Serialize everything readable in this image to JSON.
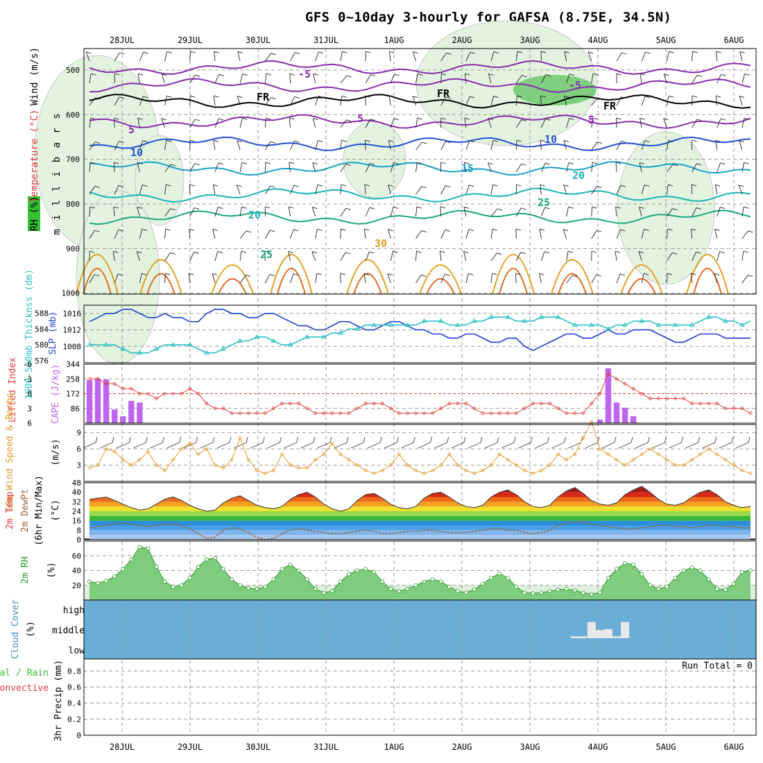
{
  "title": "GFS 0~10day 3-hourly for GAFSA (8.75E, 34.5N)",
  "dates": [
    "28JUL",
    "29JUL",
    "30JUL",
    "31JUL",
    "1AUG",
    "2AUG",
    "3AUG",
    "4AUG",
    "5AUG",
    "6AUG"
  ],
  "colors": {
    "grid": "#9a9a9a",
    "slp": "#1f3fd0",
    "thickness": "#2bbfc4",
    "lifted_index": "#e03c3c",
    "cape": "#bf66f0",
    "wind10m": "#e29a2a",
    "barb": "#4a3a3a",
    "dewpoint": "#a06030",
    "rh": "#2a9a2a",
    "cloud": "#6aaed6",
    "cloud_bars": "#e8e8e8"
  },
  "chart_data": [
    {
      "type": "area",
      "name": "upper-air",
      "ylabel": "m i l l i b a r s",
      "yticks": [
        500,
        600,
        700,
        800,
        900,
        1000
      ],
      "side_labels": [
        "Wind (m/s)",
        "Temperature (°C)",
        "RH (%)"
      ],
      "isotherm_labels": [
        "-5",
        "FR",
        "5",
        "10",
        "15",
        "20",
        "25",
        "30"
      ],
      "isotherms": [
        {
          "label": "-5",
          "color": "#8a2bb0",
          "pressure": 495
        },
        {
          "label": "-5",
          "color": "#8a2bb0",
          "pressure": 535
        },
        {
          "label": "FR",
          "color": "#000000",
          "pressure": 570
        },
        {
          "label": "5",
          "color": "#8a2bb0",
          "pressure": 615
        },
        {
          "label": "10",
          "color": "#2050d0",
          "pressure": 665
        },
        {
          "label": "15",
          "color": "#1aa0c8",
          "pressure": 720
        },
        {
          "label": "20",
          "color": "#1ab4b4",
          "pressure": 780
        },
        {
          "label": "25",
          "color": "#1aa87a",
          "pressure": 830
        }
      ]
    },
    {
      "type": "line",
      "name": "slp-thickness",
      "left_label": "1000-500mb Thicknss (dm)",
      "right_label": "SLP (mb)",
      "left_ticks": [
        "576",
        "580",
        "584",
        "588"
      ],
      "right_ticks": [
        "1008",
        "1012",
        "1016"
      ],
      "series": [
        {
          "name": "SLP (mb)",
          "axis": "right",
          "ylim": [
            1004,
            1018
          ],
          "values": [
            1014,
            1015,
            1016,
            1016,
            1017,
            1017,
            1016,
            1015,
            1015,
            1016,
            1015,
            1015,
            1014,
            1014,
            1016,
            1017,
            1017,
            1016,
            1016,
            1015,
            1015,
            1016,
            1016,
            1015,
            1014,
            1013,
            1013,
            1012,
            1012,
            1013,
            1014,
            1014,
            1013,
            1012,
            1012,
            1013,
            1014,
            1014,
            1013,
            1012,
            1012,
            1011,
            1011,
            1010,
            1010,
            1011,
            1011,
            1010,
            1009,
            1009,
            1010,
            1010,
            1008,
            1007,
            1008,
            1009,
            1010,
            1011,
            1011,
            1010,
            1010,
            1011,
            1012,
            1011,
            1011,
            1012,
            1012,
            1012,
            1011,
            1010,
            1009,
            1009,
            1010,
            1011,
            1011,
            1011,
            1010,
            1010,
            1010,
            1010
          ]
        },
        {
          "name": "Thickness (dm)",
          "axis": "left",
          "ylim": [
            575.5,
            590
          ],
          "values": [
            580,
            580,
            580,
            580,
            579,
            578,
            578,
            578,
            579,
            580,
            580,
            580,
            580,
            579,
            578,
            578,
            579,
            580,
            581,
            581,
            582,
            582,
            581,
            580,
            580,
            581,
            582,
            582,
            582,
            583,
            583,
            584,
            584,
            585,
            585,
            585,
            585,
            585,
            585,
            585,
            586,
            586,
            586,
            585,
            585,
            585,
            586,
            586,
            587,
            587,
            587,
            586,
            586,
            586,
            587,
            587,
            587,
            586,
            585,
            585,
            585,
            585,
            584,
            585,
            585,
            586,
            586,
            586,
            585,
            585,
            585,
            585,
            585,
            586,
            587,
            587,
            586,
            586,
            585,
            586
          ]
        }
      ]
    },
    {
      "type": "bar",
      "name": "lifted-index-cape",
      "left_label": "Lifted Index",
      "right_label": "CAPE (J/kg)",
      "li_ticks": [
        "-6",
        "-3",
        "0",
        "3",
        "6"
      ],
      "cape_ticks": [
        "344",
        "258",
        "172",
        "86"
      ],
      "li_ylim": [
        6,
        -6
      ],
      "cape_ylim": [
        0,
        344
      ],
      "li": [
        -3,
        -3,
        -2,
        -2,
        -1,
        -1,
        0,
        0,
        1,
        0,
        0,
        0,
        -1,
        0,
        2,
        3,
        3,
        4,
        4,
        4,
        4,
        4,
        3,
        2,
        2,
        2,
        3,
        4,
        4,
        4,
        4,
        4,
        3,
        2,
        2,
        2,
        3,
        4,
        4,
        4,
        4,
        4,
        3,
        2,
        2,
        2,
        3,
        4,
        4,
        4,
        4,
        4,
        3,
        2,
        2,
        2,
        3,
        4,
        4,
        4,
        2,
        0,
        -4,
        -3,
        -2,
        -1,
        0,
        1,
        1,
        1,
        1,
        1,
        2,
        2,
        2,
        2,
        3,
        3,
        3,
        4
      ],
      "cape": [
        250,
        260,
        255,
        80,
        40,
        130,
        120,
        0,
        0,
        0,
        0,
        0,
        0,
        0,
        0,
        0,
        0,
        0,
        0,
        0,
        0,
        0,
        0,
        0,
        0,
        0,
        0,
        0,
        0,
        0,
        0,
        0,
        0,
        0,
        0,
        0,
        0,
        0,
        0,
        0,
        0,
        0,
        0,
        0,
        0,
        0,
        0,
        0,
        0,
        0,
        0,
        0,
        0,
        0,
        0,
        0,
        0,
        0,
        0,
        0,
        0,
        20,
        320,
        120,
        90,
        40,
        0,
        0,
        0,
        0,
        0,
        0,
        0,
        0,
        0,
        0,
        0,
        0,
        0,
        0
      ]
    },
    {
      "type": "line",
      "name": "wind-10m",
      "left_label": "10m Wind Speed & Barbs",
      "unit": "(m/s)",
      "yticks": [
        "3",
        "6",
        "9"
      ],
      "ylim": [
        0,
        10.5
      ],
      "values": [
        2.5,
        3,
        6,
        5.5,
        4,
        3,
        4,
        5.5,
        3,
        2,
        4,
        6,
        7,
        5,
        6,
        3,
        2.5,
        4,
        8,
        4,
        2,
        1.5,
        2,
        5,
        3,
        2.5,
        2.5,
        4,
        5,
        7,
        5,
        4,
        3,
        2,
        1.5,
        2,
        3,
        5,
        3,
        2,
        1.5,
        2,
        3,
        5,
        3,
        2,
        1.5,
        2,
        3,
        5,
        4,
        3,
        2,
        1.5,
        2,
        3,
        5,
        4,
        5,
        8,
        11,
        6,
        5,
        4,
        3,
        4,
        5,
        6,
        5,
        4,
        3,
        3,
        4,
        5,
        6,
        5,
        4,
        3,
        2,
        1.5
      ]
    },
    {
      "type": "area",
      "name": "temp-dewpoint",
      "left_label": "2m Temp",
      "left_label2": "2m DewPt",
      "left_label3": "(6hr Min/Max)",
      "unit": "(°C)",
      "yticks": [
        "0",
        "8",
        "16",
        "24",
        "32",
        "40",
        "48"
      ],
      "ylim": [
        0,
        48
      ],
      "temperature": [
        34,
        35,
        36,
        33,
        30,
        27,
        25,
        26,
        30,
        34,
        36,
        33,
        29,
        26,
        24,
        25,
        31,
        35,
        37,
        33,
        29,
        27,
        26,
        28,
        34,
        38,
        40,
        36,
        30,
        26,
        24,
        26,
        33,
        38,
        39,
        35,
        30,
        27,
        26,
        28,
        35,
        39,
        40,
        36,
        31,
        28,
        27,
        29,
        36,
        40,
        42,
        38,
        32,
        28,
        27,
        29,
        36,
        41,
        44,
        39,
        33,
        30,
        29,
        31,
        38,
        42,
        45,
        40,
        34,
        30,
        29,
        31,
        36,
        40,
        42,
        38,
        32,
        29,
        27,
        28
      ],
      "dewpoint": [
        10,
        11,
        12,
        13,
        14,
        13,
        12,
        11,
        12,
        13,
        13,
        12,
        9,
        5,
        1,
        2,
        8,
        10,
        9,
        6,
        2,
        0,
        1,
        5,
        8,
        9,
        8,
        7,
        6,
        5,
        5,
        6,
        7,
        8,
        7,
        5,
        5,
        6,
        7,
        7,
        8,
        8,
        7,
        6,
        6,
        6,
        7,
        8,
        9,
        9,
        8,
        8,
        6,
        5,
        6,
        8,
        12,
        14,
        15,
        15,
        13,
        12,
        11,
        10,
        9,
        9,
        10,
        11,
        12,
        12,
        11,
        11,
        10,
        11,
        12,
        12,
        11,
        11,
        10,
        10
      ]
    },
    {
      "type": "area",
      "name": "relative-humidity",
      "left_label": "2m RH",
      "unit": "(%)",
      "yticks": [
        "20",
        "40",
        "60"
      ],
      "ylim": [
        0,
        80
      ],
      "values": [
        25,
        23,
        26,
        32,
        42,
        55,
        72,
        70,
        45,
        25,
        18,
        20,
        30,
        45,
        55,
        57,
        42,
        28,
        20,
        16,
        15,
        18,
        28,
        42,
        48,
        40,
        28,
        15,
        10,
        12,
        25,
        35,
        40,
        42,
        38,
        25,
        15,
        12,
        15,
        20,
        25,
        28,
        25,
        18,
        12,
        10,
        14,
        22,
        30,
        36,
        30,
        18,
        10,
        9,
        10,
        12,
        14,
        15,
        13,
        10,
        8,
        10,
        30,
        42,
        50,
        48,
        35,
        20,
        15,
        18,
        30,
        40,
        44,
        40,
        28,
        15,
        14,
        22,
        38,
        40
      ]
    },
    {
      "type": "bar",
      "name": "cloud-cover",
      "left_label": "Cloud Cover",
      "unit": "(%)",
      "levels": [
        "high",
        "middle",
        "low"
      ],
      "middle_cloud_pct": [
        0,
        0,
        0,
        0,
        0,
        0,
        0,
        0,
        0,
        0,
        0,
        0,
        0,
        0,
        0,
        0,
        0,
        0,
        0,
        0,
        0,
        0,
        0,
        0,
        0,
        0,
        0,
        0,
        0,
        0,
        0,
        0,
        0,
        0,
        0,
        0,
        0,
        0,
        0,
        0,
        0,
        0,
        0,
        0,
        0,
        0,
        0,
        0,
        0,
        0,
        0,
        0,
        0,
        0,
        0,
        0,
        0,
        0,
        10,
        10,
        90,
        45,
        50,
        10,
        90,
        0,
        0,
        0,
        0,
        0,
        0,
        0,
        0,
        0,
        0,
        0,
        0,
        0,
        0,
        0
      ]
    },
    {
      "type": "bar",
      "name": "precipitation",
      "left_label": "3hr Precip (mm)",
      "side_label_a": "Total / Rain",
      "side_label_b": "Convective",
      "run_total": "Run Total = 0",
      "yticks": [
        "0",
        "0.2",
        "0.4",
        "0.6",
        "0.8"
      ],
      "ylim": [
        0,
        0.95
      ],
      "values": [
        0,
        0,
        0,
        0,
        0,
        0,
        0,
        0,
        0,
        0,
        0,
        0,
        0,
        0,
        0,
        0,
        0,
        0,
        0,
        0,
        0,
        0,
        0,
        0,
        0,
        0,
        0,
        0,
        0,
        0,
        0,
        0,
        0,
        0,
        0,
        0,
        0,
        0,
        0,
        0,
        0,
        0,
        0,
        0,
        0,
        0,
        0,
        0,
        0,
        0,
        0,
        0,
        0,
        0,
        0,
        0,
        0,
        0,
        0,
        0,
        0,
        0,
        0,
        0,
        0,
        0,
        0,
        0,
        0,
        0,
        0,
        0,
        0,
        0,
        0,
        0,
        0,
        0,
        0,
        0
      ]
    }
  ]
}
